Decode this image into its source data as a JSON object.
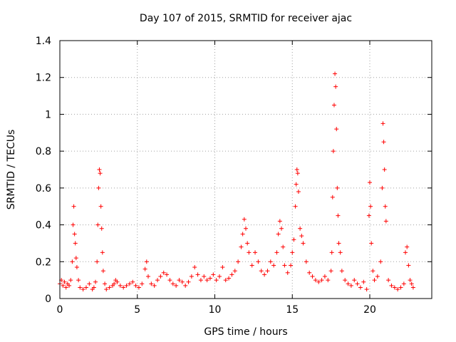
{
  "chart_data": {
    "type": "scatter",
    "title": "Day 107 of 2015, SRMTID for receiver ajac",
    "xlabel": "GPS time / hours",
    "ylabel": "SRMTID / TECUs",
    "xlim": [
      0,
      24
    ],
    "ylim": [
      0,
      1.4
    ],
    "grid": true,
    "marker": "+",
    "marker_color": "#ff0000",
    "xticks": [
      0,
      5,
      10,
      15,
      20
    ],
    "xtick_labels": [
      "0",
      "5",
      "10",
      "15",
      "20"
    ],
    "yticks": [
      0,
      0.2,
      0.4,
      0.6,
      0.8,
      1.0,
      1.2,
      1.4
    ],
    "ytick_labels": [
      "0",
      "0.2",
      "0.4",
      "0.6",
      "0.8",
      "1",
      "1.2",
      "1.4"
    ],
    "series": [
      {
        "name": "SRMTID",
        "points": [
          [
            0.0,
            0.08
          ],
          [
            0.1,
            0.1
          ],
          [
            0.2,
            0.07
          ],
          [
            0.3,
            0.09
          ],
          [
            0.4,
            0.06
          ],
          [
            0.5,
            0.08
          ],
          [
            0.6,
            0.07
          ],
          [
            0.7,
            0.1
          ],
          [
            0.8,
            0.2
          ],
          [
            0.85,
            0.4
          ],
          [
            0.9,
            0.5
          ],
          [
            0.95,
            0.35
          ],
          [
            1.0,
            0.3
          ],
          [
            1.05,
            0.22
          ],
          [
            1.1,
            0.17
          ],
          [
            1.2,
            0.1
          ],
          [
            1.3,
            0.06
          ],
          [
            1.5,
            0.05
          ],
          [
            1.7,
            0.06
          ],
          [
            1.9,
            0.08
          ],
          [
            2.1,
            0.05
          ],
          [
            2.2,
            0.06
          ],
          [
            2.3,
            0.09
          ],
          [
            2.4,
            0.2
          ],
          [
            2.45,
            0.4
          ],
          [
            2.5,
            0.6
          ],
          [
            2.55,
            0.7
          ],
          [
            2.6,
            0.68
          ],
          [
            2.65,
            0.5
          ],
          [
            2.7,
            0.38
          ],
          [
            2.75,
            0.25
          ],
          [
            2.8,
            0.15
          ],
          [
            2.9,
            0.08
          ],
          [
            3.0,
            0.05
          ],
          [
            3.2,
            0.06
          ],
          [
            3.4,
            0.07
          ],
          [
            3.5,
            0.08
          ],
          [
            3.6,
            0.1
          ],
          [
            3.7,
            0.09
          ],
          [
            3.9,
            0.07
          ],
          [
            4.1,
            0.06
          ],
          [
            4.3,
            0.07
          ],
          [
            4.5,
            0.08
          ],
          [
            4.7,
            0.09
          ],
          [
            4.9,
            0.07
          ],
          [
            5.1,
            0.06
          ],
          [
            5.3,
            0.08
          ],
          [
            5.5,
            0.16
          ],
          [
            5.6,
            0.2
          ],
          [
            5.7,
            0.12
          ],
          [
            5.9,
            0.08
          ],
          [
            6.1,
            0.07
          ],
          [
            6.3,
            0.1
          ],
          [
            6.5,
            0.12
          ],
          [
            6.7,
            0.14
          ],
          [
            6.9,
            0.13
          ],
          [
            7.1,
            0.1
          ],
          [
            7.3,
            0.08
          ],
          [
            7.5,
            0.07
          ],
          [
            7.7,
            0.1
          ],
          [
            7.9,
            0.09
          ],
          [
            8.1,
            0.07
          ],
          [
            8.3,
            0.09
          ],
          [
            8.5,
            0.12
          ],
          [
            8.7,
            0.17
          ],
          [
            8.9,
            0.13
          ],
          [
            9.1,
            0.1
          ],
          [
            9.3,
            0.12
          ],
          [
            9.5,
            0.1
          ],
          [
            9.7,
            0.11
          ],
          [
            9.9,
            0.13
          ],
          [
            10.1,
            0.1
          ],
          [
            10.3,
            0.12
          ],
          [
            10.5,
            0.17
          ],
          [
            10.7,
            0.1
          ],
          [
            10.9,
            0.11
          ],
          [
            11.1,
            0.13
          ],
          [
            11.3,
            0.15
          ],
          [
            11.5,
            0.2
          ],
          [
            11.7,
            0.28
          ],
          [
            11.8,
            0.35
          ],
          [
            11.9,
            0.43
          ],
          [
            12.0,
            0.38
          ],
          [
            12.1,
            0.3
          ],
          [
            12.2,
            0.25
          ],
          [
            12.4,
            0.18
          ],
          [
            12.6,
            0.25
          ],
          [
            12.8,
            0.2
          ],
          [
            13.0,
            0.15
          ],
          [
            13.2,
            0.13
          ],
          [
            13.4,
            0.15
          ],
          [
            13.6,
            0.2
          ],
          [
            13.8,
            0.18
          ],
          [
            14.0,
            0.25
          ],
          [
            14.1,
            0.35
          ],
          [
            14.2,
            0.42
          ],
          [
            14.3,
            0.38
          ],
          [
            14.4,
            0.28
          ],
          [
            14.5,
            0.18
          ],
          [
            14.7,
            0.14
          ],
          [
            14.9,
            0.18
          ],
          [
            15.0,
            0.25
          ],
          [
            15.1,
            0.32
          ],
          [
            15.2,
            0.5
          ],
          [
            15.25,
            0.62
          ],
          [
            15.3,
            0.7
          ],
          [
            15.35,
            0.68
          ],
          [
            15.4,
            0.58
          ],
          [
            15.5,
            0.38
          ],
          [
            15.6,
            0.34
          ],
          [
            15.7,
            0.3
          ],
          [
            15.9,
            0.2
          ],
          [
            16.1,
            0.14
          ],
          [
            16.3,
            0.12
          ],
          [
            16.5,
            0.1
          ],
          [
            16.7,
            0.09
          ],
          [
            16.9,
            0.1
          ],
          [
            17.1,
            0.12
          ],
          [
            17.3,
            0.1
          ],
          [
            17.5,
            0.15
          ],
          [
            17.55,
            0.25
          ],
          [
            17.6,
            0.55
          ],
          [
            17.65,
            0.8
          ],
          [
            17.7,
            1.05
          ],
          [
            17.75,
            1.22
          ],
          [
            17.8,
            1.15
          ],
          [
            17.85,
            0.92
          ],
          [
            17.9,
            0.6
          ],
          [
            17.95,
            0.45
          ],
          [
            18.0,
            0.3
          ],
          [
            18.1,
            0.25
          ],
          [
            18.2,
            0.15
          ],
          [
            18.4,
            0.1
          ],
          [
            18.6,
            0.08
          ],
          [
            18.8,
            0.07
          ],
          [
            19.0,
            0.1
          ],
          [
            19.2,
            0.08
          ],
          [
            19.4,
            0.06
          ],
          [
            19.6,
            0.09
          ],
          [
            19.8,
            0.05
          ],
          [
            19.95,
            0.45
          ],
          [
            20.0,
            0.63
          ],
          [
            20.05,
            0.5
          ],
          [
            20.1,
            0.3
          ],
          [
            20.2,
            0.15
          ],
          [
            20.3,
            0.1
          ],
          [
            20.5,
            0.12
          ],
          [
            20.7,
            0.2
          ],
          [
            20.8,
            0.6
          ],
          [
            20.85,
            0.95
          ],
          [
            20.9,
            0.85
          ],
          [
            20.95,
            0.7
          ],
          [
            21.0,
            0.5
          ],
          [
            21.05,
            0.42
          ],
          [
            21.2,
            0.1
          ],
          [
            21.4,
            0.07
          ],
          [
            21.6,
            0.06
          ],
          [
            21.8,
            0.05
          ],
          [
            22.0,
            0.06
          ],
          [
            22.2,
            0.08
          ],
          [
            22.3,
            0.25
          ],
          [
            22.4,
            0.28
          ],
          [
            22.5,
            0.18
          ],
          [
            22.6,
            0.1
          ],
          [
            22.7,
            0.08
          ],
          [
            22.8,
            0.06
          ]
        ]
      }
    ]
  }
}
